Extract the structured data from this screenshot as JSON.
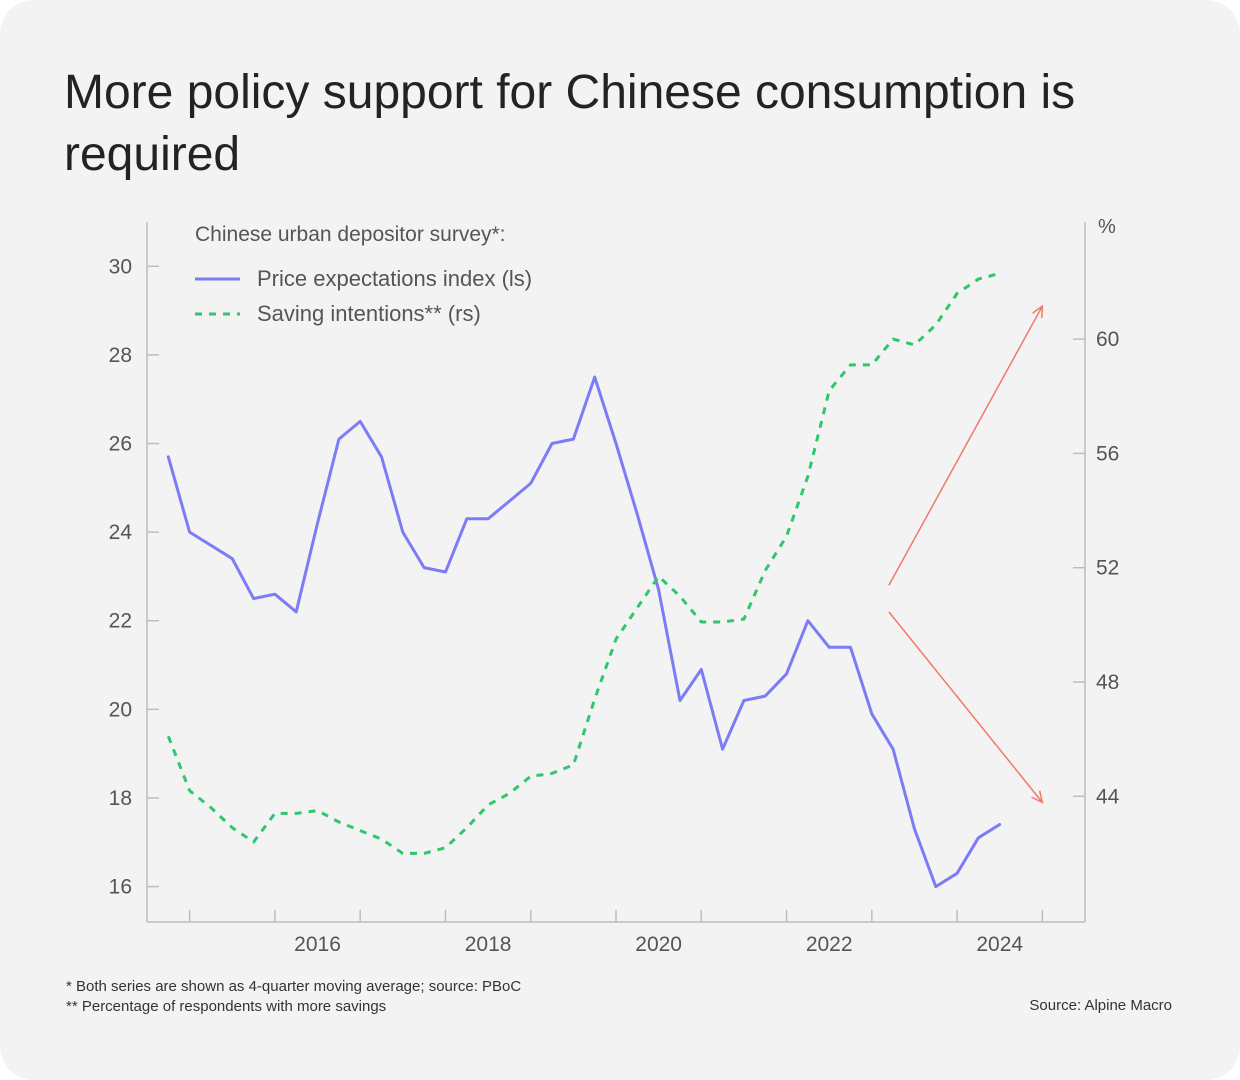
{
  "title": "More policy support for Chinese consumption is required",
  "footnotes": [
    "*  Both series are shown as 4-quarter moving average; source: PBoC",
    "** Percentage of respondents with more savings"
  ],
  "source": "Source: Alpine Macro",
  "colors": {
    "price_line": "#7b7cf6",
    "saving_line": "#2fc66e",
    "arrows": "#f2786b",
    "axis": "#bdbdbd",
    "text": "#555555"
  },
  "chart_data": {
    "type": "line",
    "legend_title": "Chinese urban depositor survey*:",
    "legend_position": "top-left",
    "right_axis_unit": "%",
    "x_ticks": [
      "2016",
      "2018",
      "2020",
      "2022",
      "2024"
    ],
    "x_range": [
      2014.5,
      2025.5
    ],
    "left_axis": {
      "ticks": [
        "16",
        "18",
        "20",
        "22",
        "24",
        "26",
        "28",
        "30"
      ],
      "range": [
        15.2,
        31.0
      ]
    },
    "right_axis": {
      "ticks": [
        "44",
        "48",
        "52",
        "56",
        "60"
      ],
      "range": [
        39.6,
        64.1
      ]
    },
    "series": [
      {
        "name": "Price expectations index (ls)",
        "axis": "left",
        "style": "solid",
        "x": [
          2014.75,
          2015.0,
          2015.25,
          2015.5,
          2015.75,
          2016.0,
          2016.25,
          2016.5,
          2016.75,
          2017.0,
          2017.25,
          2017.5,
          2017.75,
          2018.0,
          2018.25,
          2018.5,
          2018.75,
          2019.0,
          2019.25,
          2019.5,
          2019.75,
          2020.0,
          2020.25,
          2020.5,
          2020.75,
          2021.0,
          2021.25,
          2021.5,
          2021.75,
          2022.0,
          2022.25,
          2022.5,
          2022.75,
          2023.0,
          2023.25,
          2023.5,
          2023.75,
          2024.0,
          2024.25,
          2024.5
        ],
        "values": [
          25.7,
          24.0,
          23.7,
          23.4,
          22.5,
          22.6,
          22.2,
          24.2,
          26.1,
          26.5,
          25.7,
          24.0,
          23.2,
          23.1,
          24.3,
          24.3,
          24.7,
          25.1,
          26.0,
          26.1,
          27.5,
          26.0,
          24.4,
          22.7,
          20.2,
          20.9,
          19.1,
          20.2,
          20.3,
          20.8,
          22.0,
          21.4,
          21.4,
          19.9,
          19.1,
          17.3,
          16.0,
          16.3,
          17.1,
          17.4
        ]
      },
      {
        "name": "Saving intentions** (rs)",
        "axis": "right",
        "style": "dashed",
        "x": [
          2014.75,
          2015.0,
          2015.25,
          2015.5,
          2015.75,
          2016.0,
          2016.25,
          2016.5,
          2016.75,
          2017.0,
          2017.25,
          2017.5,
          2017.75,
          2018.0,
          2018.25,
          2018.5,
          2018.75,
          2019.0,
          2019.25,
          2019.5,
          2019.75,
          2020.0,
          2020.25,
          2020.5,
          2020.75,
          2021.0,
          2021.25,
          2021.5,
          2021.75,
          2022.0,
          2022.25,
          2022.5,
          2022.75,
          2023.0,
          2023.25,
          2023.5,
          2023.75,
          2024.0,
          2024.25,
          2024.5
        ],
        "values": [
          46.1,
          44.2,
          43.6,
          42.9,
          42.4,
          43.4,
          43.4,
          43.5,
          43.1,
          42.8,
          42.5,
          42.0,
          42.0,
          42.2,
          42.9,
          43.7,
          44.1,
          44.7,
          44.8,
          45.1,
          47.4,
          49.5,
          50.6,
          51.7,
          51.0,
          50.1,
          50.1,
          50.2,
          51.9,
          53.1,
          55.2,
          58.2,
          59.1,
          59.1,
          60.0,
          59.8,
          60.5,
          61.6,
          62.1,
          62.3
        ]
      }
    ],
    "annotations": [
      {
        "type": "arrow",
        "direction": "up",
        "from": [
          2023.2,
          22.8
        ],
        "to": [
          2025.0,
          29.1
        ]
      },
      {
        "type": "arrow",
        "direction": "down",
        "from": [
          2023.2,
          22.2
        ],
        "to": [
          2025.0,
          17.9
        ]
      }
    ]
  }
}
